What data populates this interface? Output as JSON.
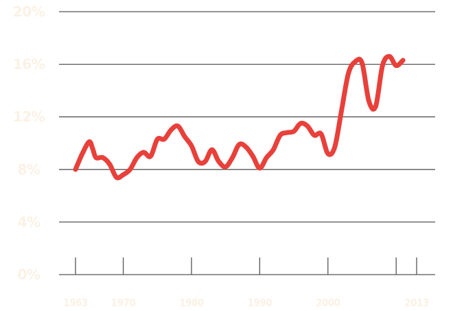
{
  "chart_data": {
    "type": "line",
    "title": "",
    "xlabel": "",
    "ylabel": "",
    "xlim": [
      1963,
      2013
    ],
    "ylim": [
      0,
      20
    ],
    "grid": true,
    "legend": "none",
    "y_ticks": [
      {
        "value": 20,
        "label": "20%"
      },
      {
        "value": 16,
        "label": "16%"
      },
      {
        "value": 12,
        "label": "12%"
      },
      {
        "value": 8,
        "label": "8%"
      },
      {
        "value": 4,
        "label": "4%"
      },
      {
        "value": 0,
        "label": "0%"
      }
    ],
    "x_ticks": [
      {
        "value": 1963,
        "label": "1963"
      },
      {
        "value": 1970,
        "label": "1970"
      },
      {
        "value": 1980,
        "label": "1980"
      },
      {
        "value": 1990,
        "label": "1990"
      },
      {
        "value": 2000,
        "label": "2000"
      },
      {
        "value": 2010,
        "label": ""
      },
      {
        "value": 2013,
        "label": "2013"
      }
    ],
    "colors": {
      "line": "#e8403a",
      "grid": "#555555",
      "tick_label": "#fbf1e4"
    },
    "series": [
      {
        "x": [
          1963,
          1964,
          1965,
          1965.5,
          1966,
          1967,
          1968,
          1969,
          1970,
          1971,
          1972,
          1973,
          1974,
          1975,
          1976,
          1977,
          1978,
          1979,
          1980,
          1981,
          1982,
          1983,
          1984,
          1985,
          1986,
          1987,
          1988,
          1989,
          1990,
          1991,
          1992,
          1993,
          1994,
          1995,
          1996,
          1997,
          1998,
          1999,
          2000,
          2001,
          2002,
          2003,
          2004,
          2005,
          2006,
          2007,
          2008,
          2009,
          2010,
          2011,
          2012,
          2013
        ],
        "y": [
          8.0,
          9.2,
          10.1,
          9.6,
          8.9,
          8.9,
          8.4,
          7.4,
          7.6,
          8.0,
          8.9,
          9.3,
          9.0,
          10.3,
          10.3,
          11.0,
          11.3,
          10.5,
          9.8,
          8.6,
          8.6,
          9.5,
          8.6,
          8.2,
          8.9,
          9.9,
          9.7,
          9.0,
          8.1,
          8.9,
          9.5,
          10.6,
          10.8,
          10.9,
          11.5,
          11.3,
          10.6,
          10.7,
          9.2,
          9.7,
          12.5,
          15.3,
          16.2,
          16.1,
          13.2,
          12.8,
          15.9,
          16.6,
          15.9,
          16.3,
          null,
          null
        ]
      }
    ]
  }
}
